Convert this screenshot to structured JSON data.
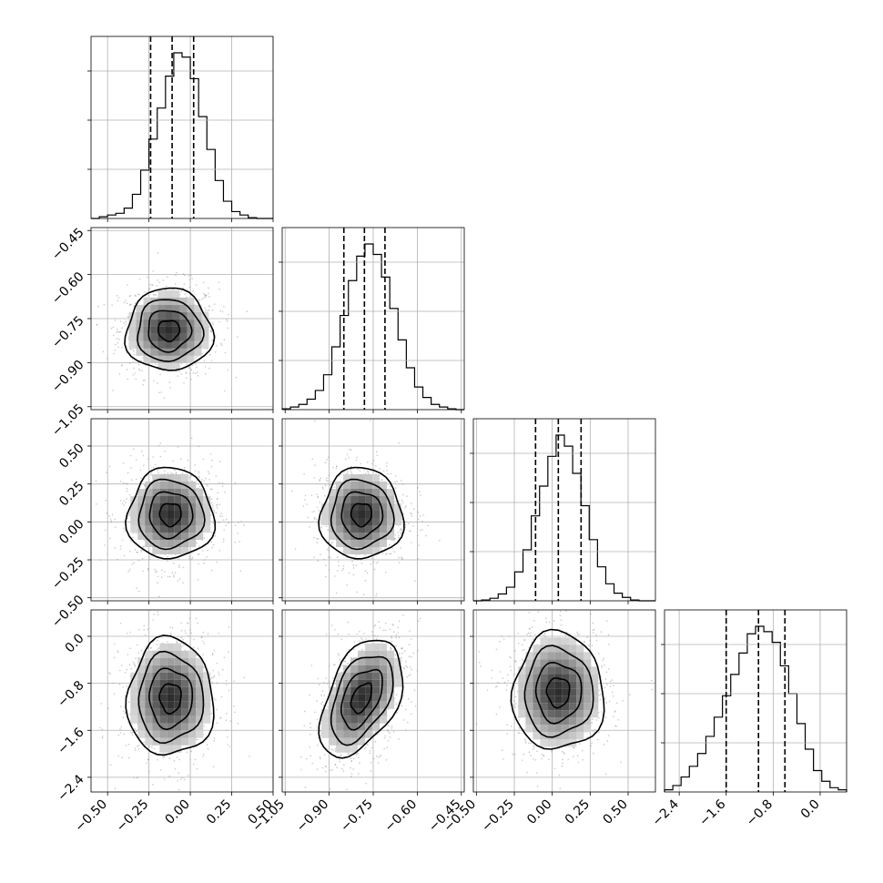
{
  "chart_data": {
    "type": "corner",
    "parameters": [
      {
        "range": [
          -0.6,
          0.5
        ],
        "ticks": [
          -0.5,
          -0.25,
          0.0,
          0.25,
          0.5
        ],
        "tick_labels": [
          "−0.50",
          "−0.25",
          "0.00",
          "0.25",
          "0.50"
        ],
        "quantiles": [
          -0.24,
          -0.11,
          0.02
        ],
        "hist_bins": [
          -0.6,
          0.5
        ],
        "hist_counts": [
          0,
          2,
          4,
          6,
          12,
          28,
          56,
          92,
          128,
          165,
          192,
          187,
          162,
          118,
          80,
          44,
          20,
          8,
          4,
          1,
          0,
          0
        ]
      },
      {
        "range": [
          -1.06,
          -0.44
        ],
        "ticks": [
          -1.05,
          -0.9,
          -0.75,
          -0.6,
          -0.45
        ],
        "tick_labels": [
          "−1.05",
          "−0.90",
          "−0.75",
          "−0.60",
          "−0.45"
        ],
        "quantiles": [
          -0.85,
          -0.78,
          -0.71
        ],
        "hist_bins": [
          -1.06,
          -0.44
        ],
        "hist_counts": [
          1,
          3,
          6,
          12,
          22,
          40,
          72,
          108,
          148,
          176,
          190,
          178,
          152,
          116,
          80,
          48,
          26,
          14,
          6,
          3,
          1,
          0
        ]
      },
      {
        "range": [
          -0.52,
          0.68
        ],
        "ticks": [
          -0.5,
          -0.25,
          0.0,
          0.25,
          0.5
        ],
        "tick_labels": [
          "−0.50",
          "−0.25",
          "0.00",
          "0.25",
          "0.50"
        ],
        "quantiles": [
          -0.11,
          0.04,
          0.19
        ],
        "hist_bins": [
          -0.52,
          0.68
        ],
        "hist_counts": [
          0,
          1,
          3,
          8,
          16,
          34,
          60,
          100,
          135,
          170,
          195,
          182,
          150,
          112,
          72,
          40,
          20,
          9,
          4,
          1,
          0,
          0
        ]
      },
      {
        "range": [
          -2.65,
          0.45
        ],
        "ticks": [
          -2.4,
          -1.6,
          -0.8,
          0.0
        ],
        "tick_labels": [
          "−2.4",
          "−1.6",
          "−0.8",
          "0.0"
        ],
        "quantiles": [
          -1.6,
          -1.05,
          -0.6
        ],
        "hist_bins": [
          -2.65,
          0.45
        ],
        "hist_counts": [
          2,
          6,
          14,
          24,
          36,
          52,
          70,
          90,
          110,
          130,
          148,
          155,
          150,
          140,
          118,
          92,
          64,
          40,
          20,
          10,
          4,
          2
        ]
      }
    ],
    "pair_peaks": {
      "1-0": [
        -0.13,
        -0.79
      ],
      "2-0": [
        -0.12,
        0.05
      ],
      "2-1": [
        -0.79,
        0.05
      ],
      "3-0": [
        -0.12,
        -1.05
      ],
      "3-1": [
        -0.79,
        -1.05
      ],
      "3-2": [
        0.04,
        -0.95
      ]
    },
    "contour_levels": 4,
    "grid": true
  }
}
